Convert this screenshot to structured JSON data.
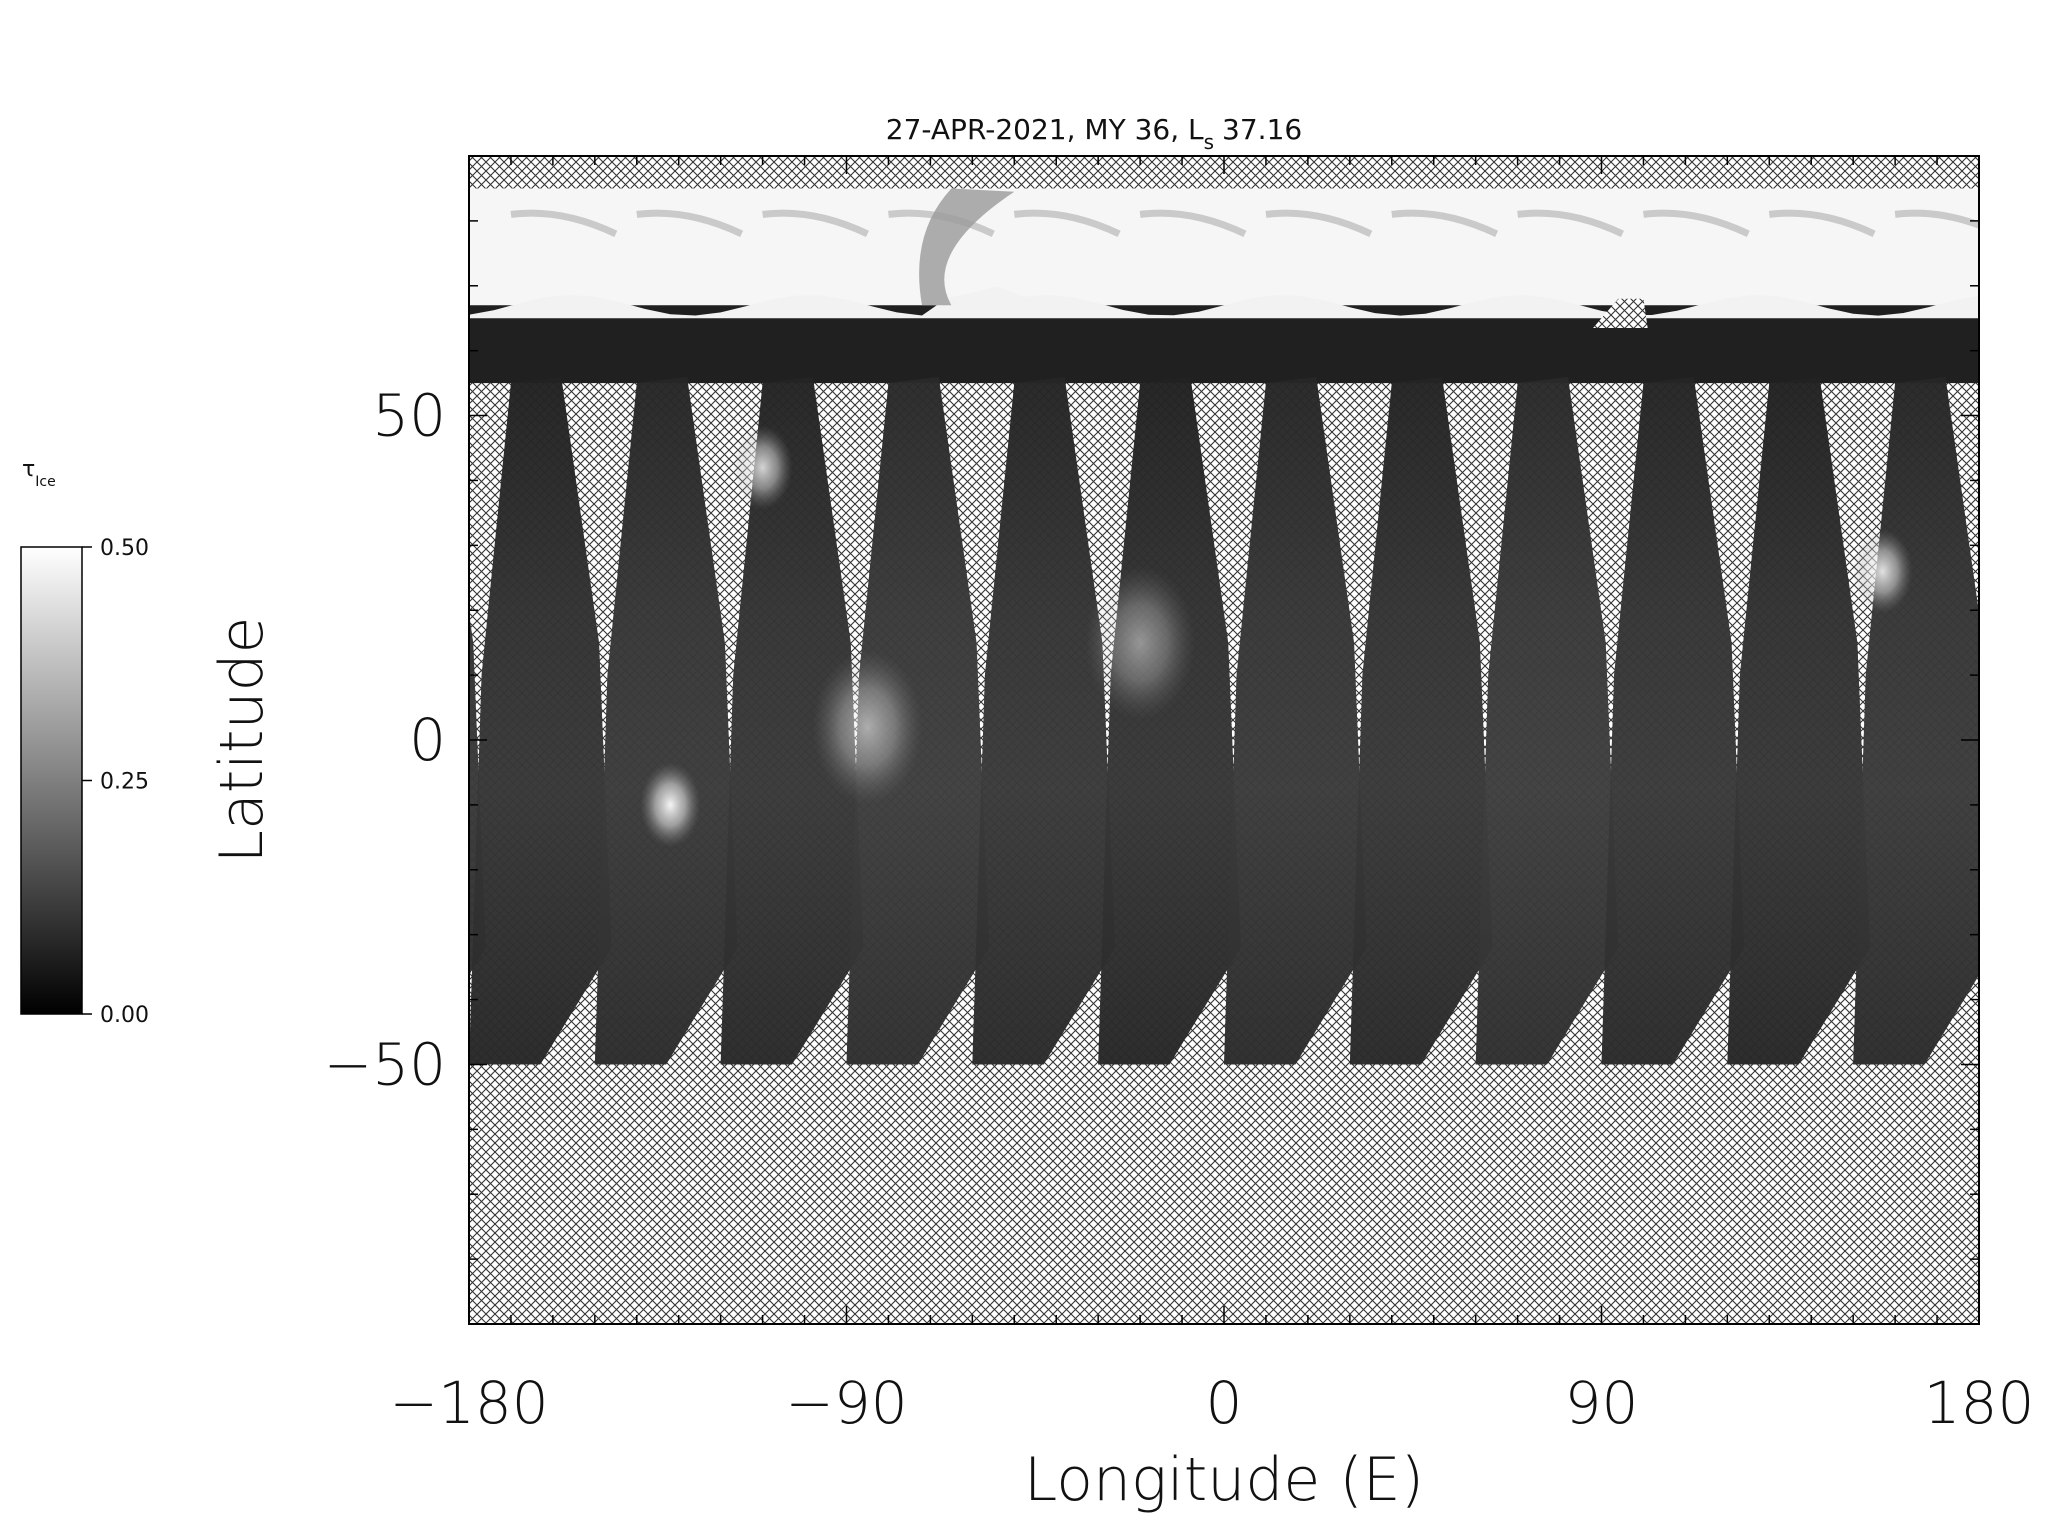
{
  "chart_data": {
    "type": "heatmap",
    "title": "27-APR-2021, MY 36,  L",
    "title_subscript": "s",
    "title_value": "37.16",
    "xlabel": "Longitude (E)",
    "ylabel": "Latitude",
    "xlim": [
      -180,
      180
    ],
    "ylim": [
      -90,
      90
    ],
    "xticks": [
      -180,
      -90,
      0,
      90,
      180
    ],
    "xtick_labels": [
      "−180",
      "−90",
      "0",
      "90",
      "180"
    ],
    "yticks": [
      -50,
      0,
      50
    ],
    "ytick_labels": [
      "−50",
      "0",
      "50"
    ],
    "no_data_pattern": "crosshatch",
    "colorbar": {
      "label": "τ",
      "label_subscript": "Ice",
      "colormap": "grayscale",
      "min": 0.0,
      "max": 0.5,
      "tick_values": [
        0.0,
        0.25,
        0.5
      ],
      "tick_labels": [
        "0.00",
        "0.25",
        "0.50"
      ]
    },
    "coverage": {
      "polar_cap_lat_range": [
        67,
        85
      ],
      "southern_coverage_limit_lat": -50,
      "no_data_lat_top": 85,
      "swath_count": 13,
      "swath_bottom_longitudes": [
        -180,
        -150,
        -120,
        -90,
        -60,
        -30,
        0,
        30,
        60,
        90,
        120,
        150
      ]
    },
    "features": [
      {
        "kind": "bright cloud",
        "lon": -132,
        "lat": -10,
        "tau": 0.5
      },
      {
        "kind": "bright cloud",
        "lon": -110,
        "lat": 42,
        "tau": 0.42
      },
      {
        "kind": "bright cloud",
        "lon": 157,
        "lat": 26,
        "tau": 0.45
      },
      {
        "kind": "cloud haze",
        "lon": -85,
        "lat": 2,
        "tau": 0.3
      },
      {
        "kind": "cloud haze",
        "lon": -20,
        "lat": 15,
        "tau": 0.25
      }
    ]
  }
}
